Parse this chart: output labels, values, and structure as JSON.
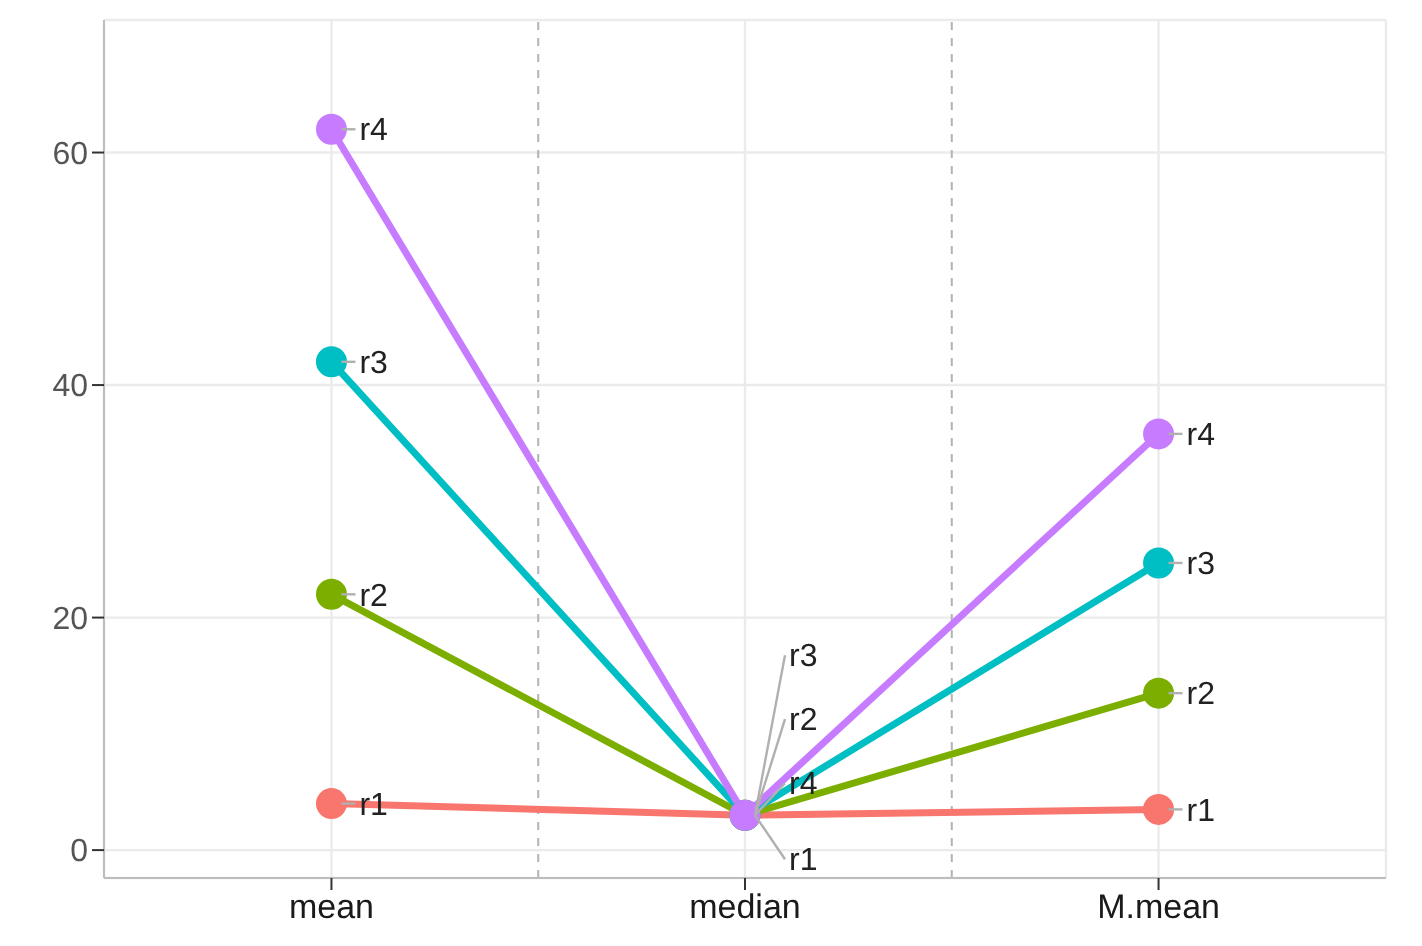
{
  "chart_data": {
    "type": "line",
    "categories": [
      "mean",
      "median",
      "M.mean"
    ],
    "ylim": [
      -2.4,
      71.4
    ],
    "yticks": [
      0,
      20,
      40,
      60
    ],
    "grid": true,
    "marker": "circle",
    "line_style": "solid",
    "legend": false,
    "series": [
      {
        "name": "r1",
        "color": "#f8766d",
        "values": [
          4,
          3,
          3.5
        ]
      },
      {
        "name": "r2",
        "color": "#7cae00",
        "values": [
          22,
          3,
          13.5
        ]
      },
      {
        "name": "r3",
        "color": "#00bfc4",
        "values": [
          42,
          3,
          24.7
        ]
      },
      {
        "name": "r4",
        "color": "#c77cff",
        "values": [
          62,
          3,
          35.8
        ]
      }
    ]
  }
}
